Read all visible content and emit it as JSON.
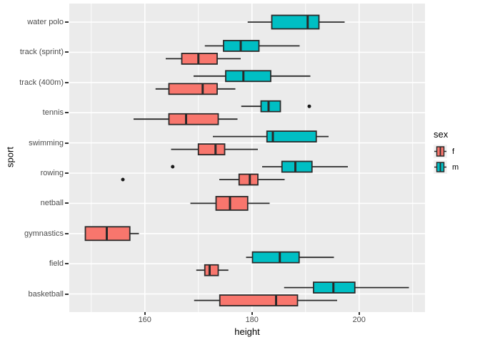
{
  "figure": {
    "background": "#FFFFFF",
    "panel_background": "#EBEBEB",
    "grid_color": "#FFFFFF",
    "box_stroke": "#2A2A2A",
    "outlier_color": "#1A1A1A",
    "axis_text_color": "#4D4D4D",
    "legend_key_background": "#F2F2F2"
  },
  "chart_data": {
    "type": "boxplot",
    "orientation": "horizontal",
    "xlabel": "height",
    "ylabel": "sport",
    "xlim": [
      145.9,
      212.3
    ],
    "x_major_ticks": [
      160,
      180,
      200
    ],
    "x_minor_gridlines": [
      150,
      170,
      190,
      210
    ],
    "grid": "on",
    "categories": [
      "water polo",
      "track (sprint)",
      "track (400m)",
      "tennis",
      "swimming",
      "rowing",
      "netball",
      "gymnastics",
      "field",
      "basketball"
    ],
    "legend": {
      "title": "sex",
      "position": "right",
      "entries": [
        {
          "label": "f",
          "color": "#F8766D"
        },
        {
          "label": "m",
          "color": "#00BFC4"
        }
      ]
    },
    "series": [
      {
        "sport": "water polo",
        "sex": "m",
        "whislo": 179.2,
        "q1": 183.7,
        "med": 190.4,
        "q3": 192.5,
        "whishi": 197.3,
        "outliers": []
      },
      {
        "sport": "track (sprint)",
        "sex": "m",
        "whislo": 171.2,
        "q1": 174.7,
        "med": 177.9,
        "q3": 181.3,
        "whishi": 188.9,
        "outliers": []
      },
      {
        "sport": "track (sprint)",
        "sex": "f",
        "whislo": 163.9,
        "q1": 166.9,
        "med": 170.0,
        "q3": 173.5,
        "whishi": 177.9,
        "outliers": []
      },
      {
        "sport": "track (400m)",
        "sex": "m",
        "whislo": 169.1,
        "q1": 175.1,
        "med": 178.4,
        "q3": 183.5,
        "whishi": 190.9,
        "outliers": []
      },
      {
        "sport": "track (400m)",
        "sex": "f",
        "whislo": 162.0,
        "q1": 164.5,
        "med": 170.8,
        "q3": 173.5,
        "whishi": 176.9,
        "outliers": []
      },
      {
        "sport": "tennis",
        "sex": "m",
        "whislo": 178.0,
        "q1": 181.7,
        "med": 183.1,
        "q3": 185.3,
        "whishi": 185.3,
        "outliers": [
          190.7
        ]
      },
      {
        "sport": "tennis",
        "sex": "f",
        "whislo": 157.9,
        "q1": 164.5,
        "med": 167.7,
        "q3": 173.7,
        "whishi": 177.3,
        "outliers": []
      },
      {
        "sport": "swimming",
        "sex": "m",
        "whislo": 172.7,
        "q1": 182.8,
        "med": 183.9,
        "q3": 192.0,
        "whishi": 194.3,
        "outliers": []
      },
      {
        "sport": "swimming",
        "sex": "f",
        "whislo": 164.9,
        "q1": 170.0,
        "med": 173.2,
        "q3": 174.9,
        "whishi": 181.1,
        "outliers": []
      },
      {
        "sport": "rowing",
        "sex": "m",
        "whislo": 181.9,
        "q1": 185.6,
        "med": 188.1,
        "q3": 191.2,
        "whishi": 197.9,
        "outliers": [
          165.2
        ]
      },
      {
        "sport": "rowing",
        "sex": "f",
        "whislo": 173.9,
        "q1": 177.6,
        "med": 179.6,
        "q3": 181.1,
        "whishi": 186.1,
        "outliers": [
          155.9
        ]
      },
      {
        "sport": "netball",
        "sex": "f",
        "whislo": 168.5,
        "q1": 173.3,
        "med": 175.9,
        "q3": 179.2,
        "whishi": 183.3,
        "outliers": []
      },
      {
        "sport": "gymnastics",
        "sex": "f",
        "whislo": 148.9,
        "q1": 148.9,
        "med": 152.9,
        "q3": 157.2,
        "whishi": 158.9,
        "outliers": []
      },
      {
        "sport": "field",
        "sex": "m",
        "whislo": 178.9,
        "q1": 180.1,
        "med": 185.2,
        "q3": 188.8,
        "whishi": 195.3,
        "outliers": []
      },
      {
        "sport": "field",
        "sex": "f",
        "whislo": 169.6,
        "q1": 171.2,
        "med": 172.1,
        "q3": 173.7,
        "whishi": 175.6,
        "outliers": []
      },
      {
        "sport": "basketball",
        "sex": "m",
        "whislo": 186.0,
        "q1": 191.5,
        "med": 195.2,
        "q3": 199.2,
        "whishi": 209.3,
        "outliers": []
      },
      {
        "sport": "basketball",
        "sex": "f",
        "whislo": 169.2,
        "q1": 174.0,
        "med": 184.5,
        "q3": 188.5,
        "whishi": 195.9,
        "outliers": []
      }
    ]
  }
}
